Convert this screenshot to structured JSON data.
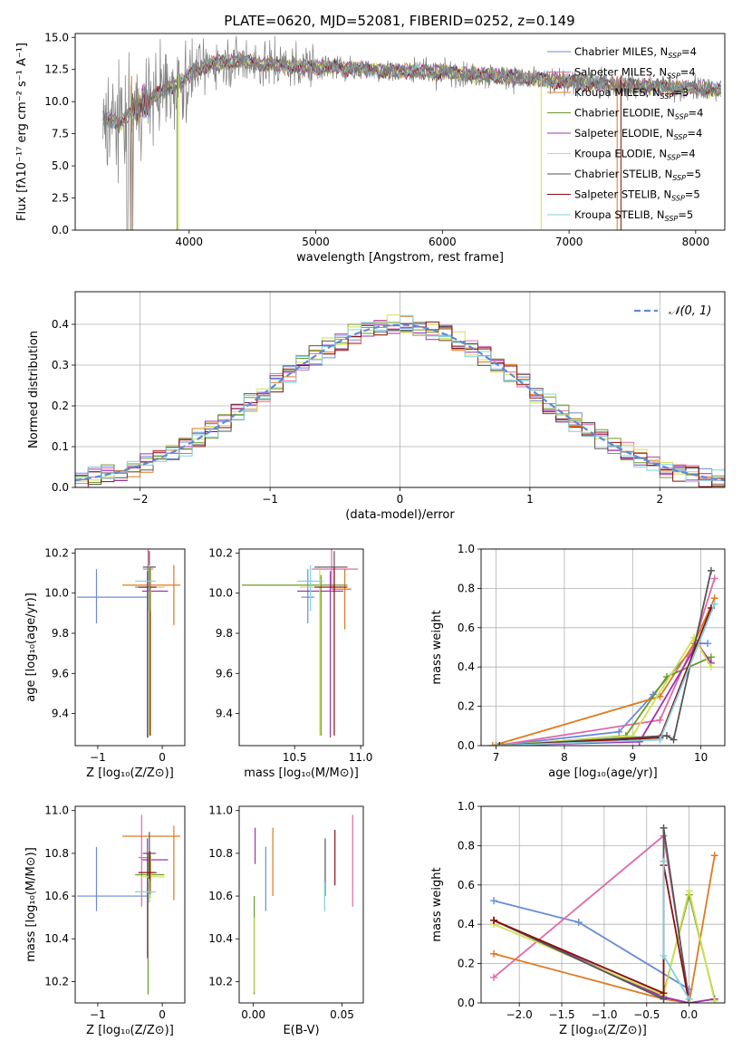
{
  "figure_title": "PLATE=0620, MJD=52081, FIBERID=0252, z=0.149",
  "colors": {
    "Chabrier MILES": "#6a8bd8",
    "Salpeter MILES": "#e06aa8",
    "Kroupa MILES": "#e07a20",
    "Chabrier ELODIE": "#6a9a2a",
    "Salpeter ELODIE": "#a030b0",
    "Kroupa ELODIE": "#d0e050",
    "Chabrier STELIB": "#555555",
    "Salpeter STELIB": "#8a1010",
    "Kroupa STELIB": "#80d0e0",
    "data": "#808080",
    "normal": "#5f8ad6"
  },
  "chart_data": [
    {
      "id": "spectrum",
      "type": "line",
      "title": "PLATE=0620, MJD=52081, FIBERID=0252, z=0.149",
      "xlabel": "wavelength [Angstrom, rest frame]",
      "ylabel": "Flux [fλ10⁻¹⁷ erg cm⁻² s⁻¹ A⁻¹]",
      "xlim": [
        3100,
        8230
      ],
      "ylim": [
        0,
        15.3
      ],
      "xticks": [
        4000,
        5000,
        6000,
        7000,
        8000
      ],
      "yticks": [
        0.0,
        2.5,
        5.0,
        7.5,
        10.0,
        12.5,
        15.0
      ],
      "legend_position": "right",
      "legend": [
        "Chabrier MILES, N_SSP=4",
        "Salpeter MILES, N_SSP=4",
        "Kroupa MILES, N_SSP=3",
        "Chabrier ELODIE, N_SSP=4",
        "Salpeter ELODIE, N_SSP=4",
        "Kroupa ELODIE, N_SSP=4",
        "Chabrier STELIB, N_SSP=5",
        "Salpeter STELIB, N_SSP=5",
        "Kroupa STELIB, N_SSP=5"
      ],
      "continuum": {
        "x": [
          3320,
          3450,
          3550,
          3650,
          3750,
          3850,
          3950,
          4050,
          4200,
          4400,
          4600,
          4800,
          5000,
          5300,
          5600,
          6000,
          6400,
          6800,
          7200,
          7600,
          8000,
          8200
        ],
        "y": [
          8.7,
          8.3,
          9.3,
          10.0,
          10.6,
          11.1,
          11.6,
          12.5,
          13.0,
          13.2,
          12.9,
          12.8,
          12.7,
          12.6,
          12.4,
          12.3,
          12.0,
          11.7,
          11.4,
          11.2,
          11.0,
          10.9
        ]
      }
    },
    {
      "id": "residuals",
      "type": "histogram",
      "xlabel": "(data-model)/error",
      "ylabel": "Normed distribution",
      "xlim": [
        -2.5,
        2.5
      ],
      "ylim": [
        0,
        0.48
      ],
      "xticks": [
        -2,
        -1,
        0,
        1,
        2
      ],
      "yticks": [
        0.0,
        0.1,
        0.2,
        0.3,
        0.4
      ],
      "legend_position": "top-right",
      "reference_curve": "𝒩(0, 1)",
      "bin_width": 0.1,
      "grid": true
    },
    {
      "id": "age_vs_Z",
      "type": "errorbar",
      "xlabel": "Z [log₁₀(Z/Z⊙)]",
      "ylabel": "age  [log₁₀(age/yr)]",
      "xlim": [
        -1.35,
        0.35
      ],
      "ylim": [
        9.24,
        10.22
      ],
      "xticks": [
        -1,
        0
      ],
      "yticks": [
        9.4,
        9.6,
        9.8,
        10.0,
        10.2
      ],
      "points": [
        {
          "model": "Chabrier MILES",
          "x": -1.02,
          "xerr": [
            0.3,
            0.8
          ],
          "y": 9.98,
          "yerr": [
            0.13,
            0.14
          ]
        },
        {
          "model": "Salpeter MILES",
          "x": -0.22,
          "xerr": [
            0.08,
            0.08
          ],
          "y": 10.12,
          "yerr": [
            0.1,
            0.1
          ]
        },
        {
          "model": "Kroupa MILES",
          "x": 0.18,
          "xerr": [
            0.8,
            0.1
          ],
          "y": 10.04,
          "yerr": [
            0.2,
            0.1
          ]
        },
        {
          "model": "Chabrier ELODIE",
          "x": -0.22,
          "xerr": [
            0.2,
            0.25
          ],
          "y": 10.03,
          "yerr": [
            0.75,
            0.1
          ]
        },
        {
          "model": "Salpeter ELODIE",
          "x": -0.23,
          "xerr": [
            0.08,
            0.32
          ],
          "y": 10.01,
          "yerr": [
            0.73,
            0.1
          ]
        },
        {
          "model": "Kroupa ELODIE",
          "x": -0.18,
          "xerr": [
            0.15,
            0.22
          ],
          "y": 10.03,
          "yerr": [
            0.74,
            0.1
          ]
        },
        {
          "model": "Chabrier STELIB",
          "x": -0.2,
          "xerr": [
            0.1,
            0.1
          ],
          "y": 10.13,
          "yerr": [
            0.12,
            0.08
          ]
        },
        {
          "model": "Salpeter STELIB",
          "x": -0.19,
          "xerr": [
            0.18,
            0.1
          ],
          "y": 10.03,
          "yerr": [
            0.74,
            0.1
          ]
        },
        {
          "model": "Kroupa STELIB",
          "x": -0.2,
          "xerr": [
            0.22,
            0.1
          ],
          "y": 10.06,
          "yerr": [
            0.15,
            0.08
          ]
        }
      ]
    },
    {
      "id": "age_vs_mass",
      "type": "errorbar",
      "xlabel": "mass [log₁₀(M/M⊙)]",
      "ylabel": "",
      "xlim": [
        10.08,
        11.02
      ],
      "ylim": [
        9.24,
        10.22
      ],
      "xticks": [
        10.5,
        11.0
      ],
      "yticks": [
        9.4,
        9.6,
        9.8,
        10.0,
        10.2
      ],
      "points": [
        {
          "model": "Chabrier MILES",
          "x": 10.6,
          "xerr": [
            0.05,
            0.05
          ],
          "y": 9.98,
          "yerr": [
            0.13,
            0.14
          ]
        },
        {
          "model": "Salpeter MILES",
          "x": 10.78,
          "xerr": [
            0.15,
            0.2
          ],
          "y": 10.12,
          "yerr": [
            0.1,
            0.1
          ]
        },
        {
          "model": "Kroupa MILES",
          "x": 10.88,
          "xerr": [
            0.1,
            0.05
          ],
          "y": 10.02,
          "yerr": [
            0.2,
            0.1
          ]
        },
        {
          "model": "Chabrier ELODIE",
          "x": 10.7,
          "xerr": [
            0.6,
            0.2
          ],
          "y": 10.04,
          "yerr": [
            0.75,
            0.05
          ]
        },
        {
          "model": "Salpeter ELODIE",
          "x": 10.77,
          "xerr": [
            0.25,
            0.1
          ],
          "y": 10.01,
          "yerr": [
            0.73,
            0.1
          ]
        },
        {
          "model": "Kroupa ELODIE",
          "x": 10.69,
          "xerr": [
            0.15,
            0.2
          ],
          "y": 10.03,
          "yerr": [
            0.74,
            0.1
          ]
        },
        {
          "model": "Chabrier STELIB",
          "x": 10.8,
          "xerr": [
            0.15,
            0.1
          ],
          "y": 10.13,
          "yerr": [
            0.12,
            0.08
          ]
        },
        {
          "model": "Salpeter STELIB",
          "x": 10.8,
          "xerr": [
            0.15,
            0.1
          ],
          "y": 10.03,
          "yerr": [
            0.74,
            0.1
          ]
        },
        {
          "model": "Kroupa STELIB",
          "x": 10.62,
          "xerr": [
            0.1,
            0.1
          ],
          "y": 10.06,
          "yerr": [
            0.15,
            0.08
          ]
        }
      ]
    },
    {
      "id": "weight_vs_age",
      "type": "line",
      "xlabel": "age  [log₁₀(age/yr)]",
      "ylabel": "mass weight",
      "xlim": [
        6.78,
        10.35
      ],
      "ylim": [
        0,
        1.0
      ],
      "xticks": [
        7,
        8,
        9,
        10
      ],
      "yticks": [
        0.0,
        0.2,
        0.4,
        0.6,
        0.8,
        1.0
      ],
      "grid": true,
      "series": [
        {
          "model": "Chabrier MILES",
          "x": [
            7.0,
            8.8,
            9.3,
            9.95,
            10.1
          ],
          "y": [
            0.0,
            0.07,
            0.26,
            0.52,
            0.52
          ]
        },
        {
          "model": "Salpeter MILES",
          "x": [
            7.0,
            9.4,
            9.9,
            10.2
          ],
          "y": [
            0.0,
            0.13,
            0.52,
            0.85
          ]
        },
        {
          "model": "Kroupa MILES",
          "x": [
            6.95,
            9.4,
            9.9,
            10.2
          ],
          "y": [
            0.0,
            0.25,
            0.52,
            0.75
          ]
        },
        {
          "model": "Chabrier ELODIE",
          "x": [
            7.1,
            8.9,
            9.5,
            10.15
          ],
          "y": [
            0.0,
            0.05,
            0.35,
            0.45
          ]
        },
        {
          "model": "Salpeter ELODIE",
          "x": [
            7.0,
            9.1,
            9.95,
            10.15
          ],
          "y": [
            0.0,
            0.02,
            0.52,
            0.42
          ]
        },
        {
          "model": "Kroupa ELODIE",
          "x": [
            7.0,
            9.0,
            9.9,
            10.15
          ],
          "y": [
            0.0,
            0.05,
            0.55,
            0.4
          ]
        },
        {
          "model": "Chabrier STELIB",
          "x": [
            7.0,
            9.5,
            9.6,
            10.15
          ],
          "y": [
            0.0,
            0.05,
            0.03,
            0.89
          ]
        },
        {
          "model": "Salpeter STELIB",
          "x": [
            7.05,
            9.4,
            10.15
          ],
          "y": [
            0.0,
            0.04,
            0.7
          ]
        },
        {
          "model": "Kroupa STELIB",
          "x": [
            7.0,
            9.4,
            10.2
          ],
          "y": [
            0.0,
            0.03,
            0.72
          ]
        }
      ]
    },
    {
      "id": "mass_vs_Z",
      "type": "errorbar",
      "xlabel": "Z [log₁₀(Z/Z⊙)]",
      "ylabel": "mass [log₁₀(M/M⊙)]",
      "xlim": [
        -1.35,
        0.35
      ],
      "ylim": [
        10.1,
        11.02
      ],
      "xticks": [
        -1,
        0
      ],
      "yticks": [
        10.2,
        10.4,
        10.6,
        10.8,
        11.0
      ],
      "points": [
        {
          "model": "Chabrier MILES",
          "x": -1.02,
          "xerr": [
            0.3,
            0.8
          ],
          "y": 10.6,
          "yerr": [
            0.07,
            0.23
          ]
        },
        {
          "model": "Salpeter MILES",
          "x": -0.32,
          "xerr": [
            0.05,
            0.15
          ],
          "y": 10.78,
          "yerr": [
            0.23,
            0.2
          ]
        },
        {
          "model": "Kroupa MILES",
          "x": 0.18,
          "xerr": [
            0.8,
            0.1
          ],
          "y": 10.88,
          "yerr": [
            0.3,
            0.05
          ]
        },
        {
          "model": "Chabrier ELODIE",
          "x": -0.22,
          "xerr": [
            0.2,
            0.25
          ],
          "y": 10.7,
          "yerr": [
            0.56,
            0.1
          ]
        },
        {
          "model": "Salpeter ELODIE",
          "x": -0.23,
          "xerr": [
            0.08,
            0.32
          ],
          "y": 10.77,
          "yerr": [
            0.46,
            0.1
          ]
        },
        {
          "model": "Kroupa ELODIE",
          "x": -0.18,
          "xerr": [
            0.15,
            0.22
          ],
          "y": 10.69,
          "yerr": [
            0.1,
            0.1
          ]
        },
        {
          "model": "Chabrier STELIB",
          "x": -0.2,
          "xerr": [
            0.1,
            0.1
          ],
          "y": 10.8,
          "yerr": [
            0.12,
            0.1
          ]
        },
        {
          "model": "Salpeter STELIB",
          "x": -0.19,
          "xerr": [
            0.18,
            0.1
          ],
          "y": 10.71,
          "yerr": [
            0.1,
            0.1
          ]
        },
        {
          "model": "Kroupa STELIB",
          "x": -0.2,
          "xerr": [
            0.22,
            0.1
          ],
          "y": 10.62,
          "yerr": [
            0.05,
            0.05
          ]
        }
      ]
    },
    {
      "id": "mass_vs_ebv",
      "type": "errorbar",
      "xlabel": "E(B-V)",
      "ylabel": "",
      "xlim": [
        -0.008,
        0.062
      ],
      "ylim": [
        10.1,
        11.02
      ],
      "xticks": [
        0.0,
        0.05
      ],
      "yticks": [
        10.2,
        10.4,
        10.6,
        10.8,
        11.0
      ],
      "points": [
        {
          "model": "Chabrier MILES",
          "x": 0.007,
          "xerr": [
            0,
            0
          ],
          "y": 10.6,
          "yerr": [
            0.07,
            0.23
          ]
        },
        {
          "model": "Salpeter MILES",
          "x": 0.056,
          "xerr": [
            0,
            0
          ],
          "y": 10.78,
          "yerr": [
            0.23,
            0.2
          ]
        },
        {
          "model": "Kroupa MILES",
          "x": 0.011,
          "xerr": [
            0,
            0
          ],
          "y": 10.8,
          "yerr": [
            0.2,
            0.12
          ]
        },
        {
          "model": "Chabrier ELODIE",
          "x": 0.0005,
          "xerr": [
            0,
            0
          ],
          "y": 10.5,
          "yerr": [
            0.36,
            0.1
          ]
        },
        {
          "model": "Salpeter ELODIE",
          "x": 0.001,
          "xerr": [
            0,
            0
          ],
          "y": 10.85,
          "yerr": [
            0.1,
            0.07
          ]
        },
        {
          "model": "Kroupa ELODIE",
          "x": 0.0003,
          "xerr": [
            0,
            0
          ],
          "y": 10.4,
          "yerr": [
            0.25,
            0.1
          ]
        },
        {
          "model": "Chabrier STELIB",
          "x": 0.0405,
          "xerr": [
            0,
            0
          ],
          "y": 10.75,
          "yerr": [
            0.15,
            0.12
          ]
        },
        {
          "model": "Salpeter STELIB",
          "x": 0.046,
          "xerr": [
            0,
            0
          ],
          "y": 10.78,
          "yerr": [
            0.13,
            0.13
          ]
        },
        {
          "model": "Kroupa STELIB",
          "x": 0.0402,
          "xerr": [
            0,
            0
          ],
          "y": 10.6,
          "yerr": [
            0.07,
            0.07
          ]
        }
      ]
    },
    {
      "id": "weight_vs_Z",
      "type": "line",
      "xlabel": "Z [log₁₀(Z/Z⊙)]",
      "ylabel": "mass weight",
      "xlim": [
        -2.45,
        0.42
      ],
      "ylim": [
        0,
        1.0
      ],
      "xticks": [
        -2.0,
        -1.5,
        -1.0,
        -0.5,
        0.0
      ],
      "yticks": [
        0.0,
        0.2,
        0.4,
        0.6,
        0.8,
        1.0
      ],
      "grid": true,
      "series": [
        {
          "model": "Chabrier MILES",
          "x": [
            -2.3,
            -1.3,
            0.0,
            0.0
          ],
          "y": [
            0.52,
            0.41,
            0.07,
            0.02
          ]
        },
        {
          "model": "Salpeter MILES",
          "x": [
            -2.3,
            -0.3,
            0.0
          ],
          "y": [
            0.13,
            0.85,
            0.02
          ]
        },
        {
          "model": "Kroupa MILES",
          "x": [
            -2.3,
            -0.3,
            0.0,
            0.3
          ],
          "y": [
            0.25,
            0.02,
            0.0,
            0.75
          ]
        },
        {
          "model": "Chabrier ELODIE",
          "x": [
            -2.3,
            -0.3,
            0.0,
            0.3
          ],
          "y": [
            0.42,
            0.05,
            0.55,
            0.02
          ]
        },
        {
          "model": "Salpeter ELODIE",
          "x": [
            -2.3,
            -0.3,
            0.0,
            0.3
          ],
          "y": [
            0.42,
            0.03,
            0.0,
            0.02
          ]
        },
        {
          "model": "Kroupa ELODIE",
          "x": [
            -2.3,
            -0.3,
            0.0,
            0.3
          ],
          "y": [
            0.4,
            0.04,
            0.57,
            0.01
          ]
        },
        {
          "model": "Chabrier STELIB",
          "x": [
            -2.3,
            -0.3,
            -0.3,
            0.0
          ],
          "y": [
            0.42,
            0.02,
            0.89,
            0.0
          ]
        },
        {
          "model": "Salpeter STELIB",
          "x": [
            -2.3,
            -0.3,
            -0.3,
            0.0
          ],
          "y": [
            0.42,
            0.05,
            0.7,
            0.0
          ]
        },
        {
          "model": "Kroupa STELIB",
          "x": [
            -0.3,
            -0.3,
            0.0
          ],
          "y": [
            0.72,
            0.24,
            0.02
          ]
        }
      ]
    }
  ]
}
